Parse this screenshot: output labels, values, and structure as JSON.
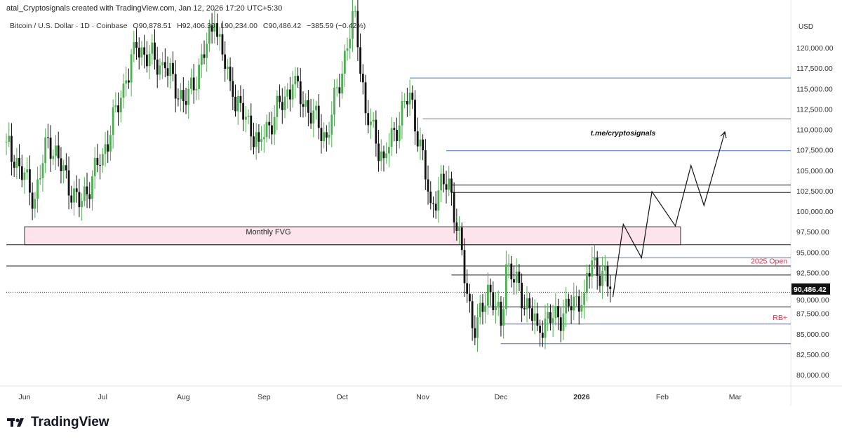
{
  "credit": "atal_Cryptosignals created with TradingView.com, Jan 12, 2026 17:20 UTC+5:30",
  "legend": {
    "symbol": "Bitcoin / U.S. Dollar · 1D · Coinbase",
    "open": "O90,878.51",
    "high": "H92,406.30",
    "low": "L90,234.00",
    "close": "C90,486.42",
    "change": "−385.59 (−0.42%)"
  },
  "currency": "USD",
  "logo": "TradingView",
  "chart_data": {
    "type": "candlestick",
    "title": "Bitcoin / U.S. Dollar · 1D · Coinbase",
    "ylim": [
      78500,
      124500
    ],
    "yticks": [
      "80,000.00",
      "82,500.00",
      "85,000.00",
      "87,500.00",
      "90,000.00",
      "92,500.00",
      "95,000.00",
      "97,500.00",
      "100,000.00",
      "102,500.00",
      "105,000.00",
      "107,500.00",
      "110,000.00",
      "112,500.00",
      "115,000.00",
      "117,500.00",
      "120,000.00"
    ],
    "xticks": [
      {
        "date": "2025-06-01",
        "label": "Jun"
      },
      {
        "date": "2025-07-01",
        "label": "Jul"
      },
      {
        "date": "2025-08-01",
        "label": "Aug"
      },
      {
        "date": "2025-09-01",
        "label": "Sep"
      },
      {
        "date": "2025-10-01",
        "label": "Oct"
      },
      {
        "date": "2025-11-01",
        "label": "Nov"
      },
      {
        "date": "2025-12-01",
        "label": "Dec"
      },
      {
        "date": "2026-01-01",
        "label": "2026"
      },
      {
        "date": "2026-02-01",
        "label": "Feb"
      },
      {
        "date": "2026-03-01",
        "label": "Mar"
      }
    ],
    "close_keypoints": [
      [
        "2025-05-25",
        108500
      ],
      [
        "2025-06-05",
        101500
      ],
      [
        "2025-06-10",
        109000
      ],
      [
        "2025-06-22",
        100500
      ],
      [
        "2025-07-01",
        107000
      ],
      [
        "2025-07-10",
        116000
      ],
      [
        "2025-07-14",
        120000
      ],
      [
        "2025-07-25",
        117500
      ],
      [
        "2025-08-02",
        113000
      ],
      [
        "2025-08-13",
        123000
      ],
      [
        "2025-08-20",
        114000
      ],
      [
        "2025-08-30",
        108500
      ],
      [
        "2025-09-12",
        115500
      ],
      [
        "2025-09-25",
        109000
      ],
      [
        "2025-10-06",
        124500
      ],
      [
        "2025-10-10",
        112000
      ],
      [
        "2025-10-17",
        106500
      ],
      [
        "2025-10-27",
        114500
      ],
      [
        "2025-11-04",
        101000
      ],
      [
        "2025-11-11",
        104000
      ],
      [
        "2025-11-21",
        84500
      ],
      [
        "2025-11-26",
        91000
      ],
      [
        "2025-12-01",
        86000
      ],
      [
        "2025-12-03",
        93500
      ],
      [
        "2025-12-15",
        86000
      ],
      [
        "2025-12-25",
        87500
      ],
      [
        "2026-01-02",
        90000
      ],
      [
        "2026-01-05",
        94000
      ],
      [
        "2026-01-12",
        90486
      ]
    ],
    "last_price": "90,486.42",
    "levels": [
      {
        "price": 116300,
        "from": "2025-10-27",
        "color": "#4a6fd1"
      },
      {
        "price": 111300,
        "from": "2025-11-01",
        "color": "#4a6fd1"
      },
      {
        "price": 107400,
        "from": "2025-11-10",
        "color": "#4a6fd1"
      },
      {
        "price": 103200,
        "from": "2025-11-12",
        "color": "#222222"
      },
      {
        "price": 102300,
        "from": "2025-11-12",
        "color": "#222222"
      },
      {
        "price": 95900,
        "from": "2025-05-25",
        "color": "#222222"
      },
      {
        "price": 94300,
        "from": "2026-01-05",
        "color": "#4a6fd1",
        "label": "2025 Open"
      },
      {
        "price": 93300,
        "from": "2025-05-25",
        "color": "#222222"
      },
      {
        "price": 92200,
        "from": "2025-11-12",
        "color": "#222222"
      },
      {
        "price": 90100,
        "from": "2025-05-25",
        "color": "#222222"
      },
      {
        "price": 88300,
        "from": "2025-11-26",
        "color": "#222222"
      },
      {
        "price": 86200,
        "from": "2025-12-01",
        "color": "#4a6fd1",
        "label": "RB+"
      },
      {
        "price": 83800,
        "from": "2025-12-01",
        "color": "#4a6fd1"
      }
    ],
    "fvg": {
      "label": "Monthly FVG",
      "top": 98100,
      "bottom": 95900,
      "from": "2025-06-01",
      "to": "2026-02-08",
      "color": "#fde4ec"
    },
    "projection": [
      [
        "2026-01-13",
        89500
      ],
      [
        "2026-01-17",
        98400
      ],
      [
        "2026-01-24",
        94300
      ],
      [
        "2026-01-28",
        102400
      ],
      [
        "2026-02-06",
        98200
      ],
      [
        "2026-02-12",
        105600
      ],
      [
        "2026-02-17",
        100700
      ],
      [
        "2026-02-25",
        109700
      ]
    ],
    "annotation": "t.me/cryptosignals",
    "colors": {
      "up": "#4caf50",
      "down": "#111111"
    }
  }
}
